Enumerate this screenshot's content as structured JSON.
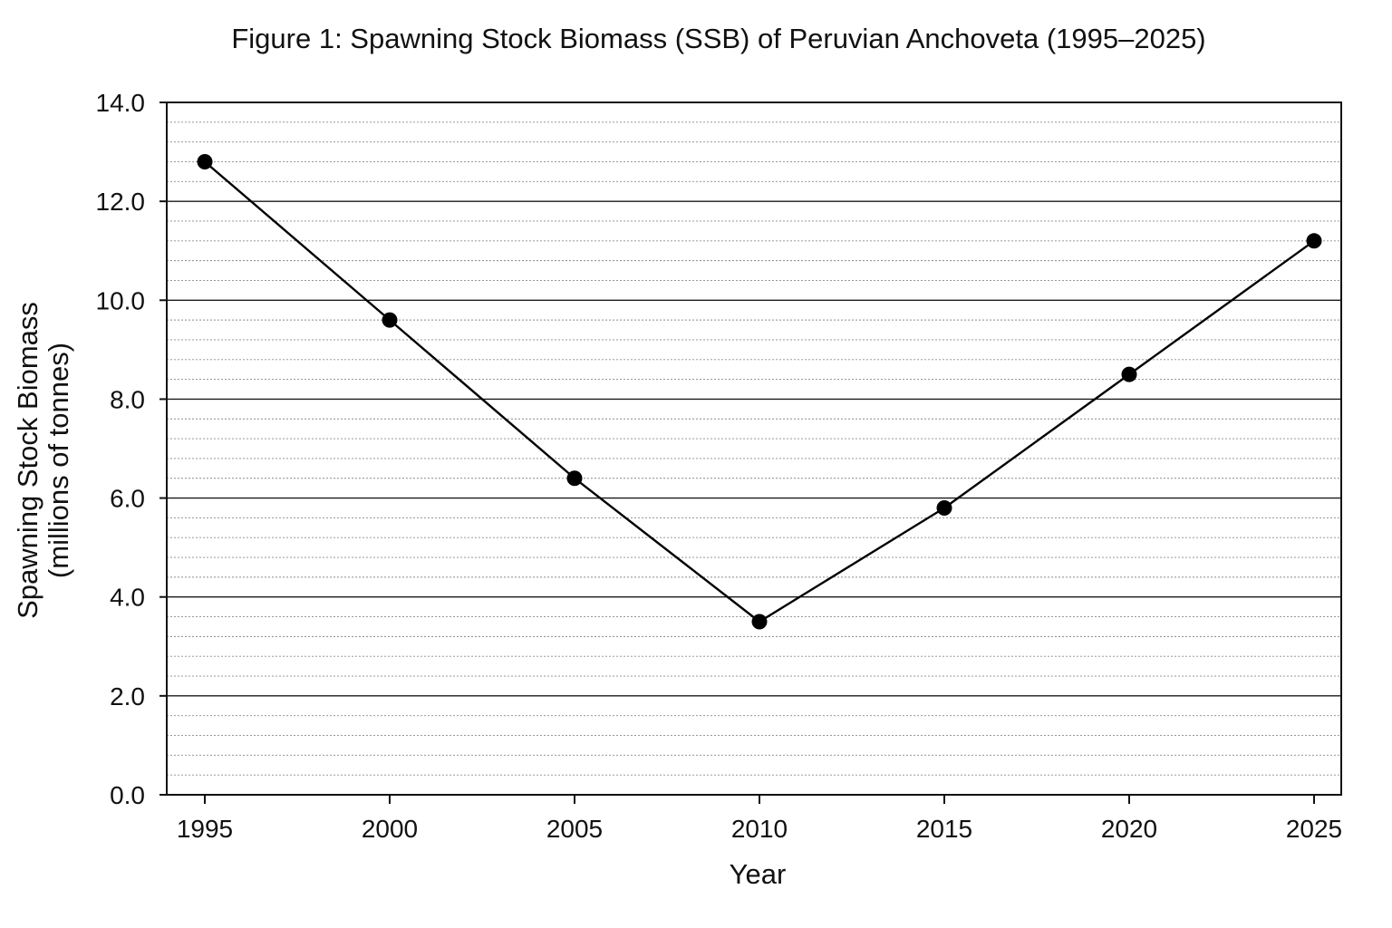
{
  "chart_data": {
    "type": "line",
    "title": "Figure 1: Spawning Stock Biomass (SSB) of Peruvian Anchoveta (1995–2025)",
    "xlabel": "Year",
    "ylabel_lines": [
      "Spawning Stock Biomass",
      "(millions of tonnes)"
    ],
    "x": [
      1995,
      2000,
      2005,
      2010,
      2015,
      2020,
      2025
    ],
    "x_tick_labels": [
      "1995",
      "2000",
      "2005",
      "2010",
      "2015",
      "2020",
      "2025"
    ],
    "series": [
      {
        "values": [
          12.8,
          9.6,
          6.4,
          3.5,
          5.8,
          8.5,
          11.2
        ],
        "color": "#000000"
      }
    ],
    "ylim": [
      0,
      14
    ],
    "y_ticks": [
      0,
      2,
      4,
      6,
      8,
      10,
      12,
      14
    ],
    "y_tick_labels": [
      "0.0",
      "2.0",
      "4.0",
      "6.0",
      "8.0",
      "10.0",
      "12.0",
      "14.0"
    ],
    "y_minor_step": 0.4,
    "grid": true,
    "legend": "none"
  }
}
